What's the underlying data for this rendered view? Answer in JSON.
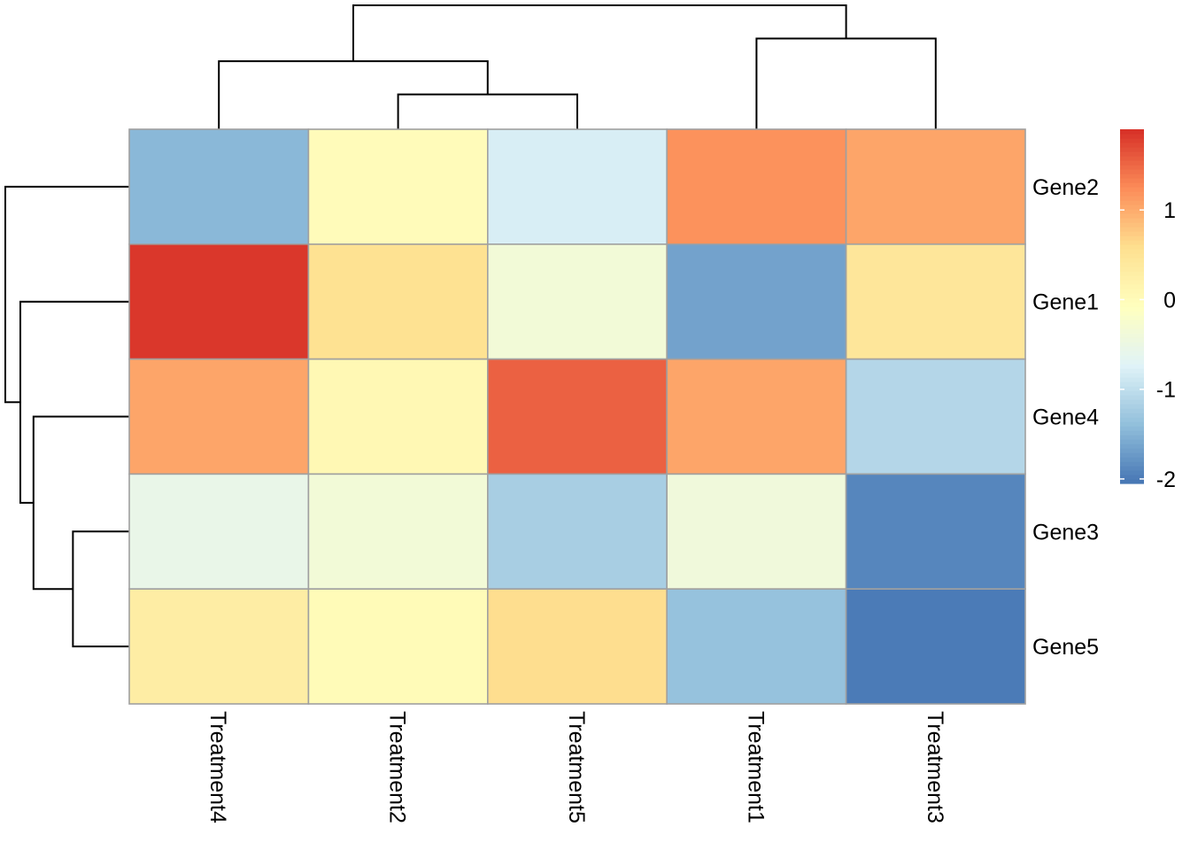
{
  "chart_data": {
    "type": "heatmap",
    "title": "",
    "xlabel": "",
    "ylabel": "",
    "columns": [
      "Treatment4",
      "Treatment2",
      "Treatment5",
      "Treatment1",
      "Treatment3"
    ],
    "rows": [
      "Gene2",
      "Gene1",
      "Gene4",
      "Gene3",
      "Gene5"
    ],
    "values": [
      [
        -1.45,
        0.0,
        -0.8,
        1.2,
        1.05
      ],
      [
        1.85,
        0.55,
        -0.35,
        -1.65,
        0.45
      ],
      [
        1.05,
        0.08,
        1.55,
        1.05,
        -1.1
      ],
      [
        -0.55,
        -0.35,
        -1.2,
        -0.4,
        -1.9
      ],
      [
        0.3,
        0.02,
        0.6,
        -1.35,
        -2.0
      ]
    ],
    "color_scale": {
      "min": -2.05,
      "max": 1.9,
      "colors": [
        "#4575b4",
        "#91bfdb",
        "#e0f3f8",
        "#ffffbf",
        "#fee090",
        "#fc8d59",
        "#d73027"
      ]
    },
    "legend": {
      "position": "right",
      "ticks": [
        1,
        0,
        -1,
        -2
      ],
      "tick_labels": [
        "1",
        "0",
        "-1",
        "-2"
      ]
    },
    "col_dendrogram": {
      "position": "top",
      "merges": [
        {
          "left": "Treatment2",
          "right": "Treatment5",
          "height": 1.0
        },
        {
          "left": "Treatment4",
          "right": "Treatment2+Treatment5",
          "height": 1.95
        },
        {
          "left": "Treatment1",
          "right": "Treatment3",
          "height": 2.6
        },
        {
          "left": "Treatment4+Treatment2+Treatment5",
          "right": "Treatment1+Treatment3",
          "height": 3.55
        }
      ]
    },
    "row_dendrogram": {
      "position": "left",
      "merges": [
        {
          "top": "Gene3",
          "bottom": "Gene5",
          "height": 1.5
        },
        {
          "top": "Gene4",
          "bottom": "Gene3+Gene5",
          "height": 2.55
        },
        {
          "top": "Gene1",
          "bottom": "Gene4+Gene3+Gene5",
          "height": 2.9
        },
        {
          "top": "Gene2",
          "bottom": "Gene1+Gene4+Gene3+Gene5",
          "height": 3.3
        }
      ]
    }
  }
}
